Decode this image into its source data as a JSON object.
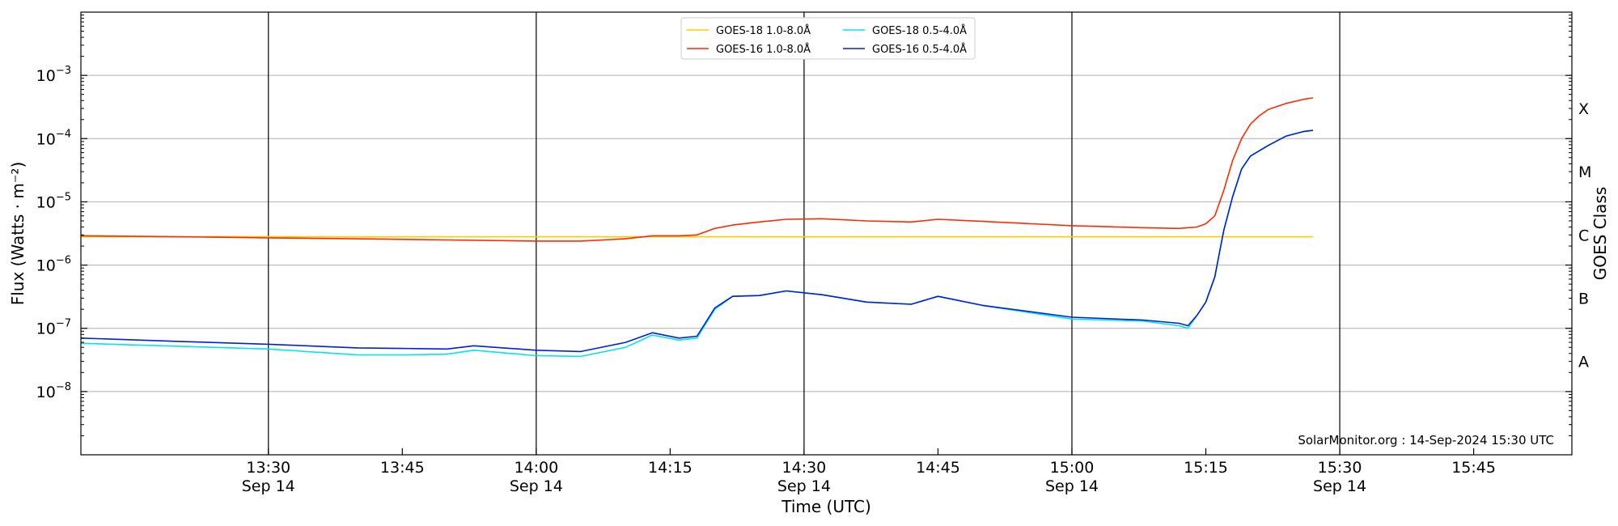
{
  "chart_data": {
    "type": "line",
    "title": "",
    "xlabel": "Time (UTC)",
    "ylabel": "Flux (Watts · m⁻²)",
    "y2label": "GOES Class",
    "yscale": "log",
    "ylim": [
      1e-09,
      0.01
    ],
    "xlim": [
      "13:09",
      "15:56"
    ],
    "grid": "horizontal at decades",
    "legend_position": "top-center",
    "credit": "SolarMonitor.org : 14-Sep-2024 15:30 UTC",
    "x_ticks": [
      {
        "t": "13:30",
        "label": "13:30",
        "sub": "Sep 14"
      },
      {
        "t": "13:45",
        "label": "13:45",
        "sub": ""
      },
      {
        "t": "14:00",
        "label": "14:00",
        "sub": "Sep 14"
      },
      {
        "t": "14:15",
        "label": "14:15",
        "sub": ""
      },
      {
        "t": "14:30",
        "label": "14:30",
        "sub": "Sep 14"
      },
      {
        "t": "14:45",
        "label": "14:45",
        "sub": ""
      },
      {
        "t": "15:00",
        "label": "15:00",
        "sub": "Sep 14"
      },
      {
        "t": "15:15",
        "label": "15:15",
        "sub": ""
      },
      {
        "t": "15:30",
        "label": "15:30",
        "sub": "Sep 14"
      },
      {
        "t": "15:45",
        "label": "15:45",
        "sub": ""
      }
    ],
    "vlines": [
      "13:30",
      "14:00",
      "14:30",
      "15:00",
      "15:30"
    ],
    "y_ticks": [
      {
        "value": 1e-08,
        "base": "10",
        "exp": "−8"
      },
      {
        "value": 1e-07,
        "base": "10",
        "exp": "−7"
      },
      {
        "value": 1e-06,
        "base": "10",
        "exp": "−6"
      },
      {
        "value": 1e-05,
        "base": "10",
        "exp": "−5"
      },
      {
        "value": 0.0001,
        "base": "10",
        "exp": "−4"
      },
      {
        "value": 0.001,
        "base": "10",
        "exp": "−3"
      }
    ],
    "goes_classes": [
      {
        "label": "A",
        "value": 3e-08
      },
      {
        "label": "B",
        "value": 3e-07
      },
      {
        "label": "C",
        "value": 3e-06
      },
      {
        "label": "M",
        "value": 3e-05
      },
      {
        "label": "X",
        "value": 0.0003
      }
    ],
    "series": [
      {
        "name": "GOES-18 1.0-8.0Å",
        "color": "#ffcc00",
        "x": [
          "13:09",
          "15:27"
        ],
        "y": [
          2.8e-06,
          2.8e-06
        ],
        "hidden_under": "GOES-16 1.0-8.0Å"
      },
      {
        "name": "GOES-16 1.0-8.0Å",
        "color": "#ff2a00",
        "x": [
          "13:09",
          "13:20",
          "13:30",
          "13:40",
          "13:50",
          "14:00",
          "14:05",
          "14:10",
          "14:13",
          "14:16",
          "14:18",
          "14:20",
          "14:22",
          "14:25",
          "14:28",
          "14:32",
          "14:37",
          "14:42",
          "14:45",
          "14:50",
          "15:00",
          "15:08",
          "15:12",
          "15:14",
          "15:15",
          "15:16",
          "15:17",
          "15:18",
          "15:19",
          "15:20",
          "15:21",
          "15:22",
          "15:24",
          "15:26",
          "15:27"
        ],
        "y": [
          2.9e-06,
          2.8e-06,
          2.7e-06,
          2.6e-06,
          2.5e-06,
          2.4e-06,
          2.4e-06,
          2.6e-06,
          2.9e-06,
          2.9e-06,
          3e-06,
          3.8e-06,
          4.3e-06,
          4.8e-06,
          5.3e-06,
          5.4e-06,
          5e-06,
          4.8e-06,
          5.3e-06,
          4.9e-06,
          4.2e-06,
          3.9e-06,
          3.8e-06,
          4e-06,
          4.5e-06,
          6e-06,
          1.5e-05,
          4.5e-05,
          0.0001,
          0.00017,
          0.00023,
          0.00029,
          0.00036,
          0.00042,
          0.00044
        ]
      },
      {
        "name": "GOES-18 0.5-4.0Å",
        "color": "#00e5ee",
        "x": [
          "13:09",
          "13:20",
          "13:30",
          "13:40",
          "13:45",
          "13:50",
          "13:53",
          "14:00",
          "14:05",
          "14:10",
          "14:13",
          "14:16",
          "14:18",
          "14:20",
          "14:22",
          "14:25",
          "14:28",
          "14:32",
          "14:37",
          "14:42",
          "14:45",
          "14:50",
          "15:00",
          "15:08",
          "15:12",
          "15:13",
          "15:14",
          "15:15",
          "15:16",
          "15:17",
          "15:18",
          "15:19",
          "15:20",
          "15:22",
          "15:24",
          "15:26",
          "15:27"
        ],
        "y": [
          5.8e-08,
          5.2e-08,
          4.7e-08,
          3.8e-08,
          3.8e-08,
          3.9e-08,
          4.5e-08,
          3.7e-08,
          3.6e-08,
          5e-08,
          7.8e-08,
          6.5e-08,
          7e-08,
          2e-07,
          3.2e-07,
          3.3e-07,
          3.9e-07,
          3.4e-07,
          2.6e-07,
          2.4e-07,
          3.2e-07,
          2.3e-07,
          1.4e-07,
          1.3e-07,
          1.1e-07,
          1e-07,
          1.6e-07,
          2.6e-07,
          6.5e-07,
          3.5e-06,
          1.2e-05,
          3.3e-05,
          5.3e-05,
          7.8e-05,
          0.00011,
          0.00013,
          0.000135
        ]
      },
      {
        "name": "GOES-16 0.5-4.0Å",
        "color": "#0020dd",
        "x": [
          "13:09",
          "13:20",
          "13:30",
          "13:40",
          "13:45",
          "13:50",
          "13:53",
          "14:00",
          "14:05",
          "14:10",
          "14:13",
          "14:16",
          "14:18",
          "14:20",
          "14:22",
          "14:25",
          "14:28",
          "14:32",
          "14:37",
          "14:42",
          "14:45",
          "14:50",
          "15:00",
          "15:08",
          "15:12",
          "15:13",
          "15:14",
          "15:15",
          "15:16",
          "15:17",
          "15:18",
          "15:19",
          "15:20",
          "15:22",
          "15:24",
          "15:26",
          "15:27"
        ],
        "y": [
          7e-08,
          6.2e-08,
          5.6e-08,
          4.9e-08,
          4.8e-08,
          4.7e-08,
          5.3e-08,
          4.5e-08,
          4.3e-08,
          6e-08,
          8.5e-08,
          7e-08,
          7.5e-08,
          2.1e-07,
          3.2e-07,
          3.3e-07,
          3.9e-07,
          3.4e-07,
          2.6e-07,
          2.4e-07,
          3.2e-07,
          2.3e-07,
          1.5e-07,
          1.35e-07,
          1.2e-07,
          1.1e-07,
          1.6e-07,
          2.6e-07,
          6.5e-07,
          3.5e-06,
          1.2e-05,
          3.3e-05,
          5.3e-05,
          7.8e-05,
          0.00011,
          0.00013,
          0.000135
        ]
      }
    ]
  }
}
